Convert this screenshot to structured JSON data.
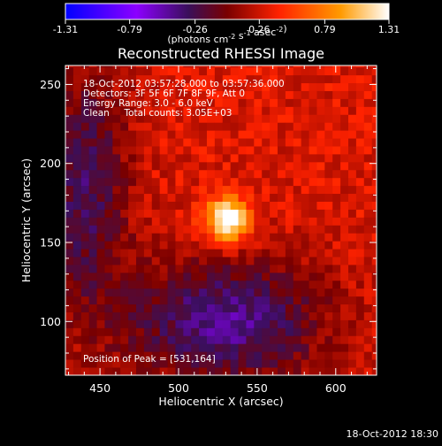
{
  "chart_data": {
    "type": "heatmap",
    "title": "Reconstructed RHESSI Image",
    "xlabel": "Heliocentric X (arcsec)",
    "ylabel": "Heliocentric Y (arcsec)",
    "xlim": [
      428,
      626
    ],
    "ylim": [
      66,
      262
    ],
    "x_ticks": [
      450,
      500,
      550,
      600
    ],
    "y_ticks": [
      100,
      150,
      200,
      250
    ],
    "colorbar": {
      "ticks": [
        "-1.31",
        "-0.79",
        "-0.26",
        "0.26",
        "0.79",
        "1.31"
      ],
      "unit_label": "(photons cm^-2 s^-1 asec^-2)",
      "range": [
        -1.31,
        1.31
      ],
      "colors": [
        "#0000ff",
        "#8c00ff",
        "#3a0f5a",
        "#7a0000",
        "#ff2200",
        "#ff9a00",
        "#ffffff"
      ]
    },
    "annotations": [
      "18-Oct-2012 03:57:28.000 to 03:57:36.000",
      "Detectors: 3F 5F 6F 7F 8F 9F, Att 0",
      "Energy Range: 3.0 - 6.0 keV",
      "Clean     Total counts: 3.05E+03"
    ],
    "peak_label": "Position of Peak = [531,164]",
    "peak": {
      "x": 531,
      "y": 164,
      "value": 1.31
    },
    "timestamp": "18-Oct-2012 18:30",
    "grid": false
  }
}
